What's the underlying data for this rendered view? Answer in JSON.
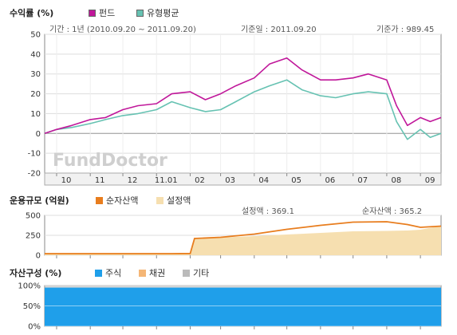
{
  "chart_data": [
    {
      "type": "line",
      "title": "수익률 (%)",
      "period_label": "기간 : 1년 (2010.09.20 ~ 2011.09.20)",
      "base_date_label": "기준일 : 2011.09.20",
      "base_price_label": "기준가 : 989.45",
      "watermark": "FundDoctor",
      "ylim": [
        -20,
        50
      ],
      "yticks": [
        50,
        40,
        30,
        20,
        10,
        0,
        -10,
        -20
      ],
      "x_ticks": [
        "10",
        "11",
        "12",
        "11.01",
        "02",
        "03",
        "04",
        "05",
        "06",
        "07",
        "08",
        "09"
      ],
      "x": [
        "2010-09-20",
        "2010-10-01",
        "2010-10-15",
        "2010-11-01",
        "2010-11-15",
        "2010-12-01",
        "2010-12-15",
        "2011-01-01",
        "2011-01-15",
        "2011-02-01",
        "2011-02-15",
        "2011-03-01",
        "2011-03-15",
        "2011-04-01",
        "2011-04-15",
        "2011-05-01",
        "2011-05-15",
        "2011-06-01",
        "2011-06-15",
        "2011-07-01",
        "2011-07-15",
        "2011-08-01",
        "2011-08-10",
        "2011-08-20",
        "2011-09-01",
        "2011-09-10",
        "2011-09-20"
      ],
      "series": [
        {
          "name": "펀드",
          "color": "#c0179a",
          "values": [
            0,
            2,
            4,
            7,
            8,
            12,
            14,
            15,
            20,
            21,
            17,
            20,
            24,
            28,
            35,
            38,
            32,
            27,
            27,
            28,
            30,
            27,
            14,
            4,
            8,
            6,
            8
          ]
        },
        {
          "name": "유형평균",
          "color": "#66c2b2",
          "values": [
            0,
            2,
            3,
            5,
            7,
            9,
            10,
            12,
            16,
            13,
            11,
            12,
            16,
            21,
            24,
            27,
            22,
            19,
            18,
            20,
            21,
            20,
            6,
            -3,
            2,
            -2,
            0
          ]
        }
      ]
    },
    {
      "type": "area",
      "title": "운용규모 (억원)",
      "ylim": [
        0,
        500
      ],
      "yticks": [
        500,
        250,
        0
      ],
      "setting_label": "설정액 : 369.1",
      "net_label": "순자산액 : 365.2",
      "x": [
        "2010-09-20",
        "2010-11-01",
        "2010-12-01",
        "2011-01-15",
        "2011-02-01",
        "2011-02-05",
        "2011-03-01",
        "2011-04-01",
        "2011-05-01",
        "2011-06-01",
        "2011-07-01",
        "2011-08-01",
        "2011-08-20",
        "2011-09-01",
        "2011-09-20"
      ],
      "series": [
        {
          "name": "순자산액",
          "color": "#e87d1e",
          "values": [
            20,
            20,
            20,
            20,
            22,
            210,
            225,
            265,
            325,
            375,
            415,
            420,
            385,
            350,
            365
          ]
        },
        {
          "name": "설정액",
          "color": "#f6dfb0",
          "values": [
            20,
            20,
            20,
            20,
            22,
            210,
            222,
            240,
            260,
            280,
            300,
            305,
            310,
            320,
            369
          ]
        }
      ]
    },
    {
      "type": "area",
      "title": "자산구성 (%)",
      "ylim": [
        0,
        100
      ],
      "yticks": [
        "100%",
        "50%",
        "0%"
      ],
      "series": [
        {
          "name": "주식",
          "color": "#1f9fea",
          "values": [
            95,
            95,
            95,
            95,
            95
          ]
        },
        {
          "name": "채권",
          "color": "#f4b676",
          "values": [
            0,
            0,
            0,
            0,
            0
          ]
        },
        {
          "name": "기타",
          "color": "#bbbbbb",
          "values": [
            5,
            5,
            5,
            5,
            5
          ]
        }
      ]
    }
  ]
}
